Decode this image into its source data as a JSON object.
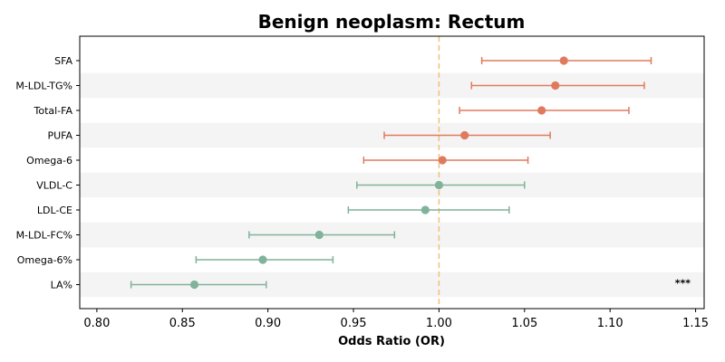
{
  "chart_data": {
    "type": "forest",
    "title": "Benign neoplasm: Rectum",
    "xlabel": "Odds Ratio (OR)",
    "xlim": [
      0.79,
      1.155
    ],
    "xticks": [
      0.8,
      0.85,
      0.9,
      0.95,
      1.0,
      1.05,
      1.1,
      1.15
    ],
    "xtick_labels": [
      "0.80",
      "0.85",
      "0.90",
      "0.95",
      "1.00",
      "1.05",
      "1.10",
      "1.15"
    ],
    "reference_line": 1.0,
    "grid": false,
    "colors": {
      "positive": "#e07a5f",
      "negative": "#81b29a",
      "reference": "#f2c27e",
      "band": "#f4f4f4"
    },
    "rows": [
      {
        "label": "SFA",
        "or": 1.073,
        "lo": 1.025,
        "hi": 1.124,
        "group": "positive"
      },
      {
        "label": "M-LDL-TG%",
        "or": 1.068,
        "lo": 1.019,
        "hi": 1.12,
        "group": "positive"
      },
      {
        "label": "Total-FA",
        "or": 1.06,
        "lo": 1.012,
        "hi": 1.111,
        "group": "positive"
      },
      {
        "label": "PUFA",
        "or": 1.015,
        "lo": 0.968,
        "hi": 1.065,
        "group": "positive"
      },
      {
        "label": "Omega-6",
        "or": 1.002,
        "lo": 0.956,
        "hi": 1.052,
        "group": "positive"
      },
      {
        "label": "VLDL-C",
        "or": 1.0,
        "lo": 0.952,
        "hi": 1.05,
        "group": "negative"
      },
      {
        "label": "LDL-CE",
        "or": 0.992,
        "lo": 0.947,
        "hi": 1.041,
        "group": "negative"
      },
      {
        "label": "M-LDL-FC%",
        "or": 0.93,
        "lo": 0.889,
        "hi": 0.974,
        "group": "negative"
      },
      {
        "label": "Omega-6%",
        "or": 0.897,
        "lo": 0.858,
        "hi": 0.938,
        "group": "negative"
      },
      {
        "label": "LA%",
        "or": 0.857,
        "lo": 0.82,
        "hi": 0.899,
        "group": "negative",
        "annotation": "***"
      }
    ]
  }
}
